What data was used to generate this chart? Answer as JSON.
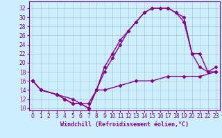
{
  "bg_color": "#cceeff",
  "line_color": "#880088",
  "grid_color": "#aacccc",
  "xlabel": "Windchill (Refroidissement éolien,°C)",
  "ylabel_ticks": [
    10,
    12,
    14,
    16,
    18,
    20,
    22,
    24,
    26,
    28,
    30,
    32
  ],
  "xlim": [
    -0.5,
    23.5
  ],
  "ylim": [
    9.5,
    33.5
  ],
  "xticks": [
    0,
    1,
    2,
    3,
    4,
    5,
    6,
    7,
    8,
    9,
    10,
    11,
    12,
    13,
    14,
    15,
    16,
    17,
    18,
    19,
    20,
    21,
    22,
    23
  ],
  "curve1_x": [
    0,
    1,
    3,
    4,
    5,
    6,
    7,
    8,
    9,
    10,
    11,
    12,
    13,
    14,
    15,
    16,
    17,
    18,
    19,
    20,
    21,
    22,
    23
  ],
  "curve1_y": [
    16,
    14,
    13,
    12,
    11,
    11,
    10,
    14,
    19,
    22,
    25,
    27,
    29,
    31,
    32,
    32,
    32,
    31,
    30,
    22,
    19,
    18,
    19
  ],
  "curve2_x": [
    0,
    1,
    3,
    4,
    5,
    6,
    7,
    8,
    9,
    10,
    11,
    12,
    13,
    14,
    15,
    16,
    17,
    18,
    19,
    20,
    21,
    22,
    23
  ],
  "curve2_y": [
    16,
    14,
    13,
    12,
    11,
    11,
    10,
    14,
    18,
    21,
    24,
    27,
    29,
    31,
    32,
    32,
    32,
    31,
    29,
    22,
    22,
    18,
    18
  ],
  "curve3_x": [
    0,
    1,
    3,
    5,
    6,
    7,
    8,
    9,
    11,
    13,
    15,
    17,
    19,
    21,
    23
  ],
  "curve3_y": [
    16,
    14,
    13,
    12,
    11,
    11,
    14,
    14,
    15,
    16,
    16,
    17,
    17,
    17,
    18
  ],
  "marker": "D",
  "markersize": 2.5,
  "linewidth": 1.0,
  "xlabel_fontsize": 6,
  "tick_fontsize": 5.5
}
